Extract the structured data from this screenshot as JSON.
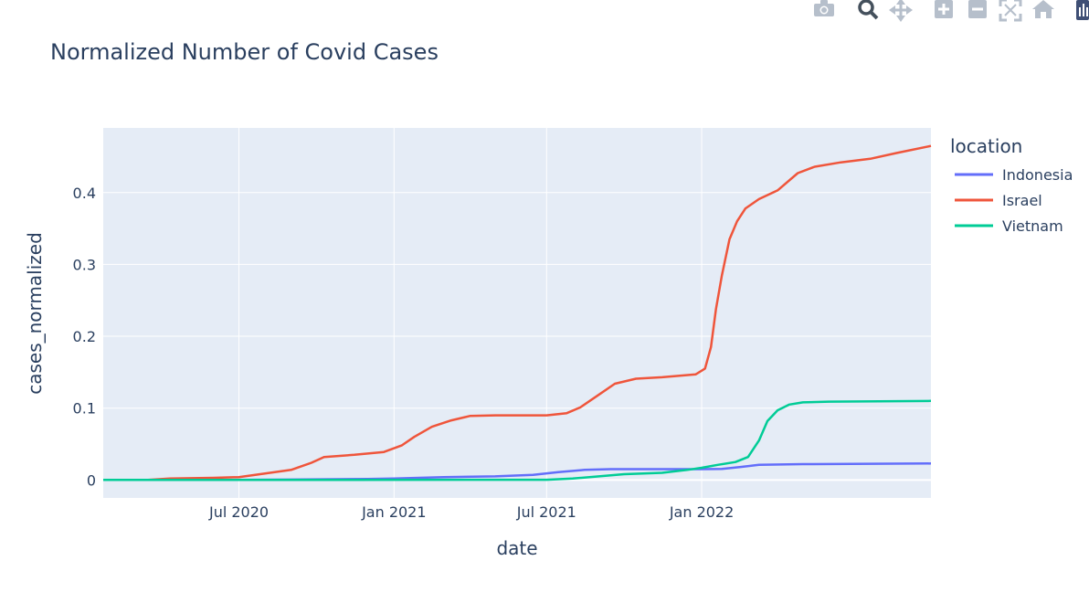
{
  "toolbar": {
    "buttons": [
      {
        "name": "camera-icon"
      },
      {
        "name": "zoom-icon"
      },
      {
        "name": "pan-icon"
      },
      {
        "name": "zoom-in-icon"
      },
      {
        "name": "zoom-out-icon"
      },
      {
        "name": "autoscale-icon"
      },
      {
        "name": "home-icon"
      },
      {
        "name": "plotly-logo-icon"
      }
    ]
  },
  "chart_data": {
    "type": "line",
    "title": "Normalized Number of Covid Cases",
    "xlabel": "date",
    "ylabel": "cases_normalized",
    "xlim": [
      "2020-01-22",
      "2022-09-30"
    ],
    "ylim": [
      -0.025,
      0.49
    ],
    "x_ticks": [
      {
        "date": "2020-07-01",
        "label": "Jul 2020"
      },
      {
        "date": "2021-01-01",
        "label": "Jan 2021"
      },
      {
        "date": "2021-07-01",
        "label": "Jul 2021"
      },
      {
        "date": "2022-01-01",
        "label": "Jan 2022"
      }
    ],
    "y_ticks": [
      {
        "value": 0,
        "label": "0"
      },
      {
        "value": 0.1,
        "label": "0.1"
      },
      {
        "value": 0.2,
        "label": "0.2"
      },
      {
        "value": 0.3,
        "label": "0.3"
      },
      {
        "value": 0.4,
        "label": "0.4"
      }
    ],
    "grid": true,
    "legend": {
      "title": "location",
      "position": "right"
    },
    "series": [
      {
        "name": "Indonesia",
        "color": "#636efa",
        "points": [
          [
            "2020-01-22",
            0
          ],
          [
            "2020-06-01",
            0
          ],
          [
            "2020-09-01",
            0.0005
          ],
          [
            "2020-12-01",
            0.0015
          ],
          [
            "2021-01-01",
            0.002
          ],
          [
            "2021-03-01",
            0.004
          ],
          [
            "2021-05-01",
            0.005
          ],
          [
            "2021-06-15",
            0.007
          ],
          [
            "2021-07-15",
            0.011
          ],
          [
            "2021-08-15",
            0.014
          ],
          [
            "2021-09-15",
            0.015
          ],
          [
            "2021-12-31",
            0.015
          ],
          [
            "2022-01-25",
            0.0155
          ],
          [
            "2022-02-15",
            0.018
          ],
          [
            "2022-03-10",
            0.021
          ],
          [
            "2022-05-01",
            0.022
          ],
          [
            "2022-09-30",
            0.023
          ]
        ]
      },
      {
        "name": "Israel",
        "color": "#ef553b",
        "points": [
          [
            "2020-01-22",
            0
          ],
          [
            "2020-03-15",
            0
          ],
          [
            "2020-04-10",
            0.002
          ],
          [
            "2020-06-01",
            0.003
          ],
          [
            "2020-07-01",
            0.004
          ],
          [
            "2020-08-01",
            0.009
          ],
          [
            "2020-09-01",
            0.014
          ],
          [
            "2020-09-25",
            0.024
          ],
          [
            "2020-10-10",
            0.032
          ],
          [
            "2020-11-15",
            0.035
          ],
          [
            "2020-12-20",
            0.039
          ],
          [
            "2021-01-10",
            0.048
          ],
          [
            "2021-01-25",
            0.06
          ],
          [
            "2021-02-15",
            0.074
          ],
          [
            "2021-03-10",
            0.083
          ],
          [
            "2021-04-01",
            0.089
          ],
          [
            "2021-05-01",
            0.09
          ],
          [
            "2021-07-01",
            0.09
          ],
          [
            "2021-07-25",
            0.093
          ],
          [
            "2021-08-10",
            0.101
          ],
          [
            "2021-08-30",
            0.117
          ],
          [
            "2021-09-20",
            0.134
          ],
          [
            "2021-10-15",
            0.141
          ],
          [
            "2021-11-15",
            0.143
          ],
          [
            "2021-12-25",
            0.147
          ],
          [
            "2022-01-05",
            0.155
          ],
          [
            "2022-01-12",
            0.185
          ],
          [
            "2022-01-18",
            0.238
          ],
          [
            "2022-01-25",
            0.285
          ],
          [
            "2022-02-03",
            0.335
          ],
          [
            "2022-02-12",
            0.36
          ],
          [
            "2022-02-22",
            0.378
          ],
          [
            "2022-03-10",
            0.391
          ],
          [
            "2022-04-01",
            0.403
          ],
          [
            "2022-04-25",
            0.427
          ],
          [
            "2022-05-15",
            0.436
          ],
          [
            "2022-06-15",
            0.442
          ],
          [
            "2022-07-20",
            0.447
          ],
          [
            "2022-08-20",
            0.455
          ],
          [
            "2022-09-30",
            0.465
          ]
        ]
      },
      {
        "name": "Vietnam",
        "color": "#00cc96",
        "points": [
          [
            "2020-01-22",
            0
          ],
          [
            "2021-07-01",
            0.0003
          ],
          [
            "2021-08-01",
            0.002
          ],
          [
            "2021-09-01",
            0.005
          ],
          [
            "2021-10-01",
            0.008
          ],
          [
            "2021-11-15",
            0.01
          ],
          [
            "2021-12-15",
            0.014
          ],
          [
            "2022-01-01",
            0.017
          ],
          [
            "2022-01-20",
            0.021
          ],
          [
            "2022-02-10",
            0.025
          ],
          [
            "2022-02-25",
            0.032
          ],
          [
            "2022-03-10",
            0.055
          ],
          [
            "2022-03-20",
            0.082
          ],
          [
            "2022-04-01",
            0.097
          ],
          [
            "2022-04-15",
            0.105
          ],
          [
            "2022-05-01",
            0.108
          ],
          [
            "2022-06-01",
            0.109
          ],
          [
            "2022-09-30",
            0.11
          ]
        ]
      }
    ]
  }
}
